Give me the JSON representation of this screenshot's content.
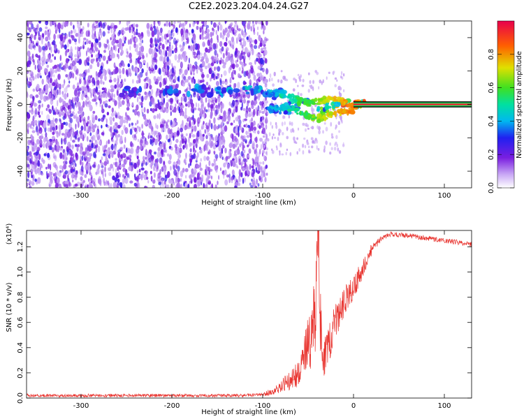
{
  "title": "C2E2.2023.204.04.24.G27",
  "colors": {
    "snr_line": "#e8322d",
    "heatmap_low": "#7a1fe0",
    "heatmap_mid": "#00d8e0",
    "heatmap_high": "#e8004c"
  },
  "chart_data": [
    {
      "type": "heatmap",
      "title": "C2E2.2023.204.04.24.G27",
      "xlabel": "Height of straight line (km)",
      "ylabel": "Frequency (Hz)",
      "xlim": [
        -360,
        130
      ],
      "ylim": [
        -50,
        50
      ],
      "x_ticks": [
        -300,
        -200,
        -100,
        0,
        100
      ],
      "y_ticks": [
        -40,
        -20,
        0,
        20,
        40
      ],
      "colorbar": {
        "label": "Normalized spectral amplitude",
        "range": [
          0.0,
          1.0
        ],
        "ticks": [
          0.0,
          0.2,
          0.4,
          0.6,
          0.8
        ]
      },
      "features": {
        "noise_extent_x": [
          -360,
          -100
        ],
        "carrier_segments": [
          {
            "x": -245,
            "y": 8,
            "amp": 0.35
          },
          {
            "x": -200,
            "y": 8,
            "amp": 0.35
          },
          {
            "x": -170,
            "y": 8,
            "amp": 0.4
          },
          {
            "x": -140,
            "y": 8,
            "amp": 0.4
          },
          {
            "x": -110,
            "y": 9,
            "amp": 0.45
          },
          {
            "x": -85,
            "y": 6,
            "amp": 0.5
          },
          {
            "x": -60,
            "y": 0,
            "amp": 0.55
          },
          {
            "x": -80,
            "y": -3,
            "amp": 0.45
          },
          {
            "x": -40,
            "y": -3,
            "amp": 0.6
          },
          {
            "x": -20,
            "y": 0,
            "amp": 0.7
          },
          {
            "x": 0,
            "y": 0,
            "amp": 0.85
          }
        ],
        "steady_carrier": {
          "x_start": 0,
          "x_end": 130,
          "y": 0,
          "amp": 0.95
        }
      }
    },
    {
      "type": "line",
      "xlabel": "Height of straight line (km)",
      "ylabel": "SNR (10 * v/v)",
      "y_multiplier_label": "(x10⁴)",
      "xlim": [
        -360,
        130
      ],
      "ylim": [
        0.0,
        1.33
      ],
      "x_ticks": [
        -300,
        -200,
        -100,
        0,
        100
      ],
      "y_ticks": [
        0.0,
        0.2,
        0.4,
        0.6,
        0.8,
        1.0,
        1.2
      ],
      "series": [
        {
          "x": [
            -360,
            -300,
            -200,
            -120,
            -100,
            -90,
            -80,
            -70,
            -60,
            -55,
            -50,
            -45,
            -40,
            -38,
            -35,
            -30,
            -25,
            -20,
            -15,
            -10,
            -5,
            0,
            5,
            10,
            15,
            20,
            30,
            40,
            60,
            80,
            100,
            130
          ],
          "values": [
            0.02,
            0.02,
            0.02,
            0.02,
            0.03,
            0.05,
            0.09,
            0.14,
            0.2,
            0.28,
            0.45,
            0.5,
            0.9,
            1.25,
            0.3,
            0.35,
            0.5,
            0.6,
            0.7,
            0.78,
            0.82,
            0.88,
            0.95,
            1.02,
            1.1,
            1.18,
            1.26,
            1.3,
            1.29,
            1.27,
            1.25,
            1.22
          ]
        }
      ]
    }
  ]
}
